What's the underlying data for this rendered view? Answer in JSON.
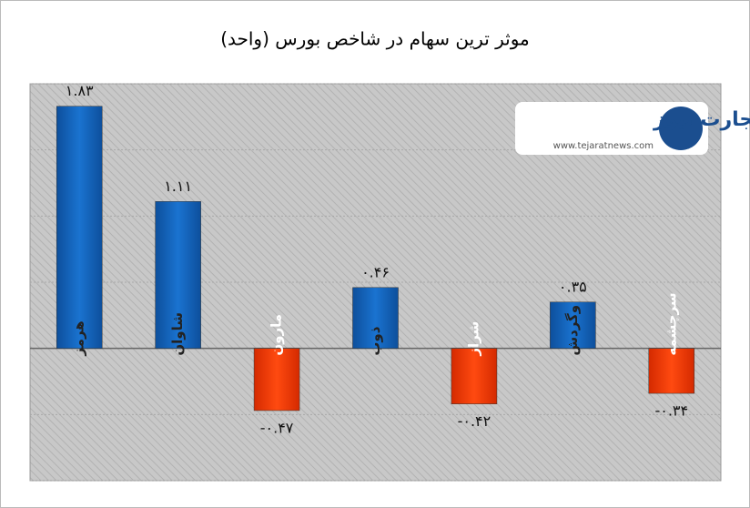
{
  "chart_data": {
    "type": "bar",
    "title": "موثر ترین سهام در شاخص بورس (واحد)",
    "categories": [
      "هرمز",
      "شاوان",
      "مارون",
      "ذوب",
      "شراز",
      "وگردش",
      "سرچشمه"
    ],
    "values": [
      1.83,
      1.11,
      -0.47,
      0.46,
      -0.42,
      0.35,
      -0.34
    ],
    "value_labels": [
      "۱.۸۳",
      "۱.۱۱",
      "-۰.۴۷",
      "۰.۴۶",
      "-۰.۴۲",
      "۰.۳۵",
      "-۰.۳۴"
    ],
    "colors": {
      "positive": "#1565c0",
      "negative": "#ff3a00"
    },
    "ylim": [
      -1,
      2
    ],
    "yticks": [
      -1,
      -0.5,
      0,
      0.5,
      1,
      1.5,
      2
    ],
    "grid": true,
    "logo": {
      "name": "تجارت نیوز",
      "url": "www.tejaratnews.com"
    }
  }
}
